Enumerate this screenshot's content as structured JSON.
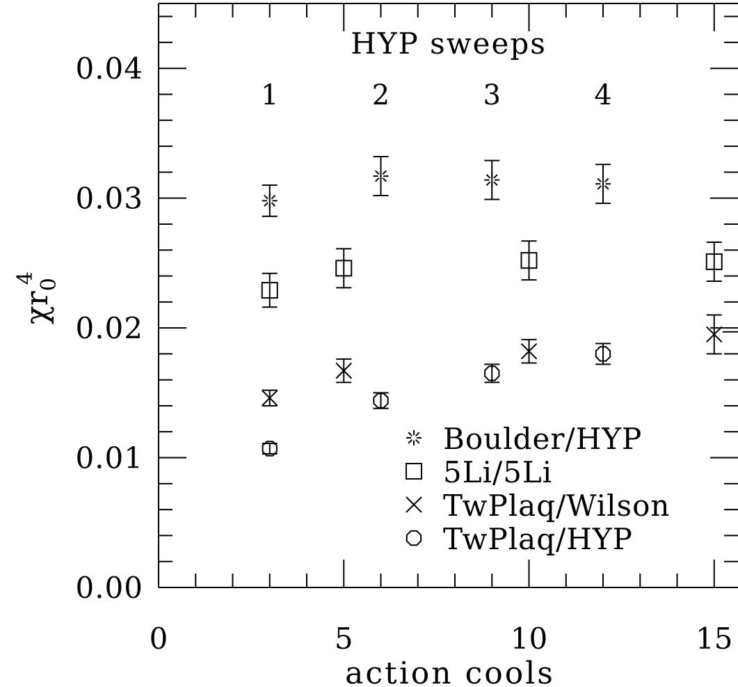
{
  "chart_data": {
    "type": "scatter",
    "xlabel": "action cools",
    "ylabel_main": "χr",
    "ylabel_sub": "0",
    "ylabel_sup": "4",
    "xlim": [
      0,
      16
    ],
    "ylim": [
      0,
      0.045
    ],
    "x_ticks": [
      0,
      5,
      10,
      15
    ],
    "x_tick_labels": [
      "0",
      "5",
      "10",
      "15"
    ],
    "y_ticks": [
      0,
      0.01,
      0.02,
      0.03,
      0.04
    ],
    "y_tick_labels": [
      "0.00",
      "0.01",
      "0.02",
      "0.03",
      "0.04"
    ],
    "grid": false,
    "legend_position": "bottom-right",
    "top_annotation": {
      "title": "HYP sweeps",
      "labels": [
        {
          "x": 3,
          "text": "1"
        },
        {
          "x": 6,
          "text": "2"
        },
        {
          "x": 9,
          "text": "3"
        },
        {
          "x": 12,
          "text": "4"
        }
      ]
    },
    "series": [
      {
        "name": "Boulder/HYP",
        "marker": "burst",
        "points": [
          {
            "x": 3,
            "y": 0.0298,
            "err": 0.0012
          },
          {
            "x": 6,
            "y": 0.0317,
            "err": 0.0015
          },
          {
            "x": 9,
            "y": 0.0314,
            "err": 0.0015
          },
          {
            "x": 12,
            "y": 0.0311,
            "err": 0.0015
          }
        ]
      },
      {
        "name": "5Li/5Li",
        "marker": "square",
        "points": [
          {
            "x": 3,
            "y": 0.0229,
            "err": 0.0013
          },
          {
            "x": 5,
            "y": 0.0246,
            "err": 0.0015
          },
          {
            "x": 10,
            "y": 0.0252,
            "err": 0.0015
          },
          {
            "x": 15,
            "y": 0.0251,
            "err": 0.0015
          }
        ]
      },
      {
        "name": "TwPlaq/Wilson",
        "marker": "cross",
        "points": [
          {
            "x": 3,
            "y": 0.0146,
            "err": 0.0006
          },
          {
            "x": 5,
            "y": 0.0167,
            "err": 0.0009
          },
          {
            "x": 10,
            "y": 0.0182,
            "err": 0.0009
          },
          {
            "x": 15,
            "y": 0.0195,
            "err": 0.0015
          }
        ]
      },
      {
        "name": "TwPlaq/HYP",
        "marker": "octagon",
        "points": [
          {
            "x": 3,
            "y": 0.0107,
            "err": 0.0004
          },
          {
            "x": 6,
            "y": 0.0144,
            "err": 0.0006
          },
          {
            "x": 9,
            "y": 0.0165,
            "err": 0.0007
          },
          {
            "x": 12,
            "y": 0.018,
            "err": 0.0008
          }
        ]
      }
    ]
  }
}
